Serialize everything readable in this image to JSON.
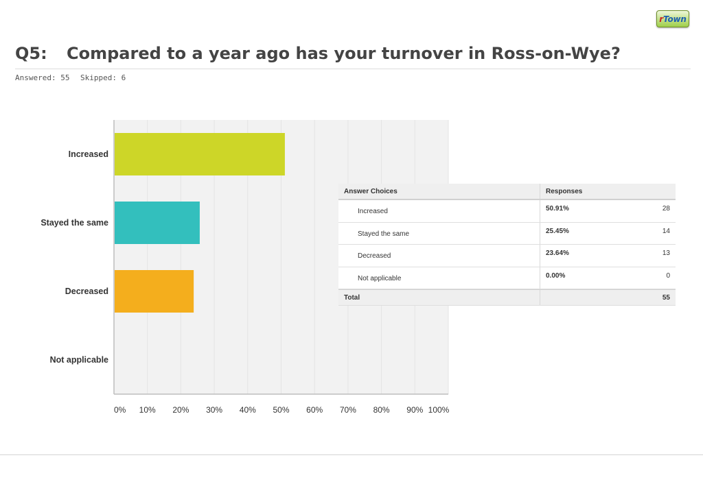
{
  "logo": {
    "prefix": "r",
    "rest": "Town"
  },
  "question": {
    "number": "Q5:",
    "title": "Compared to a year ago has your turnover in Ross-on-Wye?",
    "answered": "Answered: 55",
    "skipped": "Skipped: 6"
  },
  "chart_data": {
    "type": "bar",
    "orientation": "horizontal",
    "categories": [
      "Increased",
      "Stayed the same",
      "Decreased",
      "Not applicable"
    ],
    "values": [
      50.91,
      25.45,
      23.64,
      0.0
    ],
    "colors": [
      "#cdd628",
      "#33bfbd",
      "#f4ae1d",
      "#cccccc"
    ],
    "xlim": [
      0,
      100
    ],
    "xticks": [
      "0%",
      "10%",
      "20%",
      "30%",
      "40%",
      "50%",
      "60%",
      "70%",
      "80%",
      "90%",
      "100%"
    ],
    "grid": true,
    "gridColor": "#e4e4e4",
    "plotBackground": "#f2f2f2"
  },
  "table": {
    "headers": [
      "Answer Choices",
      "Responses"
    ],
    "rows": [
      {
        "choice": "Increased",
        "percent": "50.91%",
        "count": "28"
      },
      {
        "choice": "Stayed the same",
        "percent": "25.45%",
        "count": "14"
      },
      {
        "choice": "Decreased",
        "percent": "23.64%",
        "count": "13"
      },
      {
        "choice": "Not applicable",
        "percent": "0.00%",
        "count": "0"
      }
    ],
    "total_label": "Total",
    "total_count": "55"
  }
}
